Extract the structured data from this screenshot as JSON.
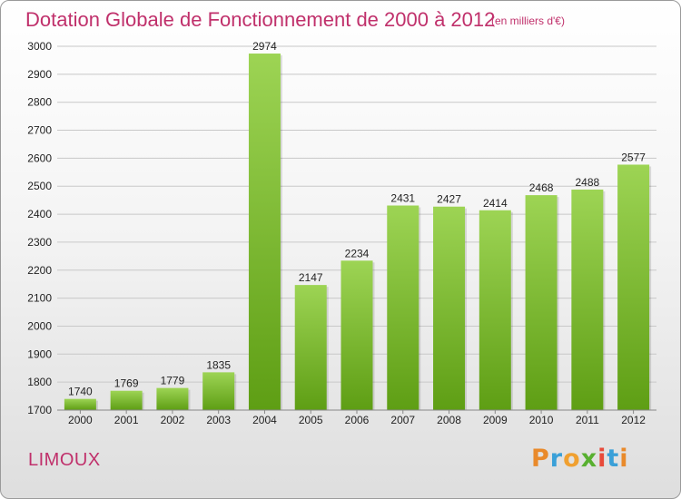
{
  "header": {
    "title": "Dotation Globale de Fonctionnement de 2000 à 2012",
    "unit": "(en milliers d'€)"
  },
  "footer": {
    "commune": "LIMOUX",
    "logo": [
      "P",
      "r",
      "o",
      "x",
      "i",
      "t",
      "i"
    ]
  },
  "colors": {
    "bar_top": "#9dd454",
    "bar_bottom": "#5e9e14",
    "title": "#c0306b"
  },
  "chart_data": {
    "type": "bar",
    "title": "Dotation Globale de Fonctionnement de 2000 à 2012",
    "subtitle": "(en milliers d'€)",
    "categories": [
      "2000",
      "2001",
      "2002",
      "2003",
      "2004",
      "2005",
      "2006",
      "2007",
      "2008",
      "2009",
      "2010",
      "2011",
      "2012"
    ],
    "values": [
      1740,
      1769,
      1779,
      1835,
      2974,
      2147,
      2234,
      2431,
      2427,
      2414,
      2468,
      2488,
      2577
    ],
    "ylim": [
      1700,
      3000
    ],
    "yticks": [
      1700,
      1800,
      1900,
      2000,
      2100,
      2200,
      2300,
      2400,
      2500,
      2600,
      2700,
      2800,
      2900,
      3000
    ],
    "grid": true,
    "xlabel": "",
    "ylabel": ""
  }
}
